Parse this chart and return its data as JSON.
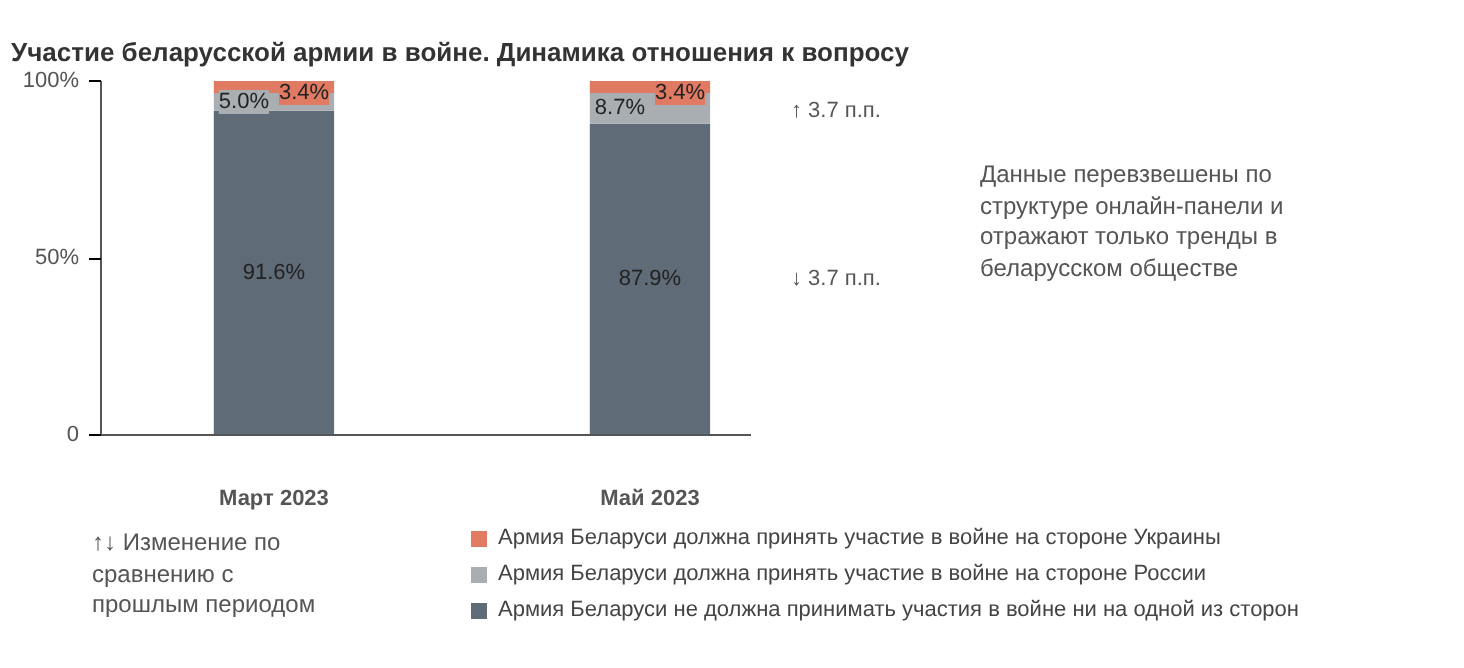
{
  "chart_data": {
    "type": "bar",
    "stacked": true,
    "title": "Участие беларусской армии в войне. Динамика отношения к вопросу",
    "categories": [
      "Март 2023",
      "Май 2023"
    ],
    "series": [
      {
        "name": "Армия Беларуси не должна принимать участия в войне ни на одной из сторон",
        "color": "#5f6b76",
        "values": [
          91.6,
          87.9
        ],
        "value_labels": [
          "91.6%",
          "87.9%"
        ]
      },
      {
        "name": "Армия Беларуси должна принять участие в войне на стороне России",
        "color": "#a9aeb2",
        "values": [
          5.0,
          8.7
        ],
        "value_labels": [
          "5.0%",
          "8.7%"
        ]
      },
      {
        "name": "Армия Беларуси должна принять участие в войне на стороне Украины",
        "color": "#e07a63",
        "values": [
          3.4,
          3.4
        ],
        "value_labels": [
          "3.4%",
          "3.4%"
        ]
      }
    ],
    "ylim": [
      0,
      100
    ],
    "yticks": [
      0,
      {
        "value": 50,
        "label": "50%"
      },
      {
        "value": 100,
        "label": "100%"
      }
    ],
    "grid": false,
    "legend": "bottom",
    "annotations": [
      "↑ 3.7 п.п.",
      "↓ 3.7 п.п.",
      "Данные перевзвешены по структуре онлайн-панели и отражают только тренды в беларусском обществе",
      "↑↓ Изменение по сравнению с прошлым периодом"
    ]
  }
}
